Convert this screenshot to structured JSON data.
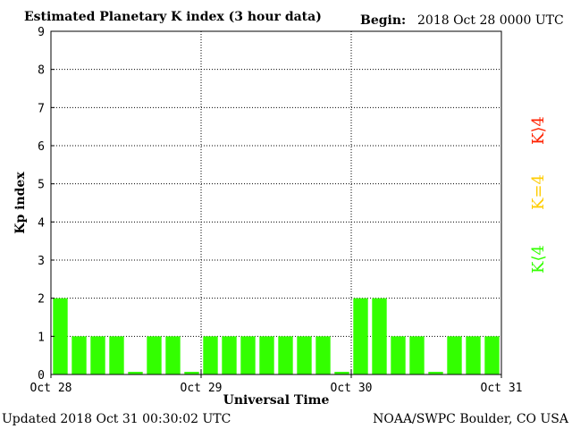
{
  "header": {
    "title": "Estimated Planetary K index (3 hour data)",
    "begin_label": "Begin:",
    "begin_value": "2018 Oct 28 0000 UTC"
  },
  "footer": {
    "updated": "Updated 2018 Oct 31 00:30:02 UTC",
    "source": "NOAA/SWPC Boulder, CO USA"
  },
  "legend": {
    "high": "K⟩4",
    "equal": "K=4",
    "low": "K⟨4"
  },
  "colors": {
    "low": "#33ff00",
    "equal": "#ffcc00",
    "high": "#ff2200"
  },
  "chart_data": {
    "type": "bar",
    "xlabel": "Universal Time",
    "ylabel": "Kp index",
    "ylim": [
      0,
      9
    ],
    "yticks": [
      "0",
      "1",
      "2",
      "3",
      "4",
      "5",
      "6",
      "7",
      "8",
      "9"
    ],
    "xticks": [
      "Oct 28",
      "Oct 29",
      "Oct 30",
      "Oct 31"
    ],
    "grid": true,
    "bar_interval_hours": 3,
    "values": [
      2,
      1,
      1,
      1,
      0,
      1,
      1,
      0,
      1,
      1,
      1,
      1,
      1,
      1,
      1,
      0,
      2,
      2,
      1,
      1,
      0,
      1,
      1,
      1
    ]
  }
}
